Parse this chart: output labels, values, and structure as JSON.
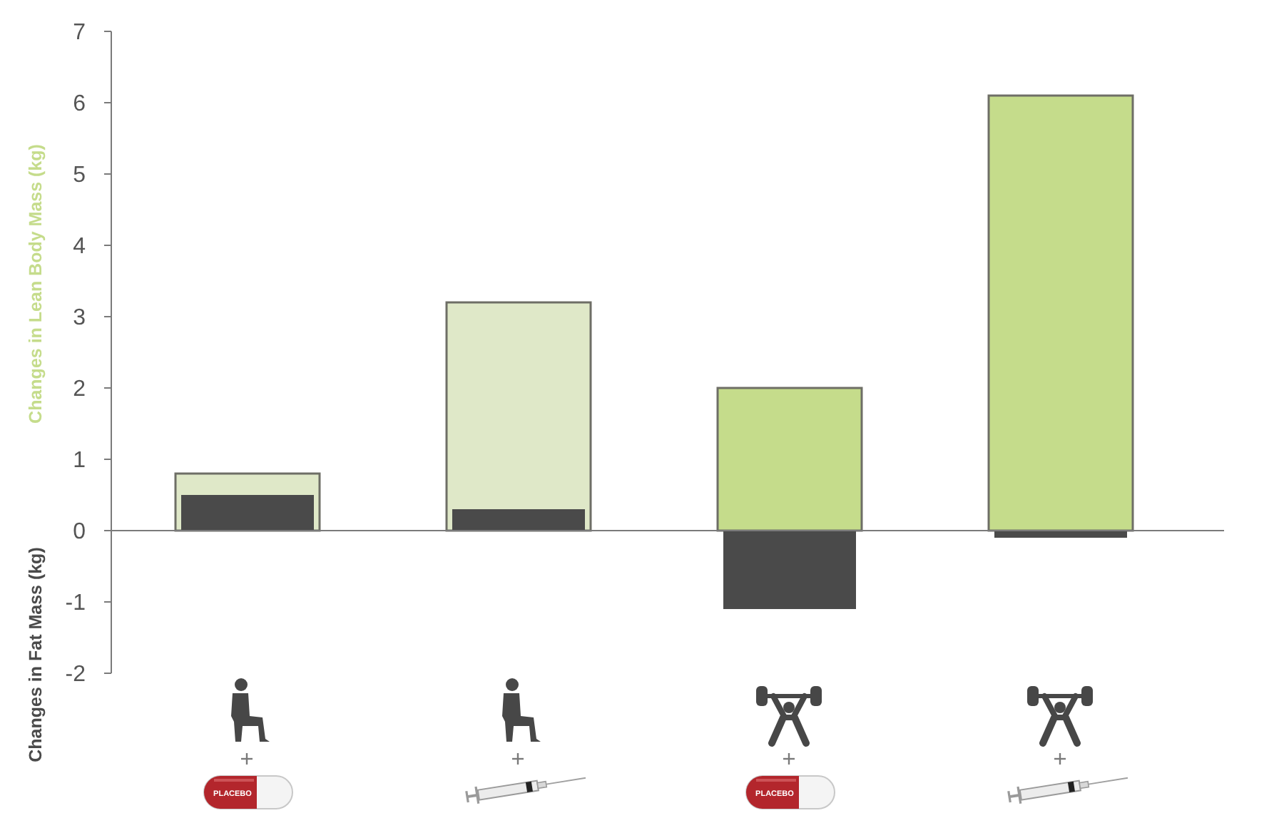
{
  "chart_data": {
    "type": "bar",
    "categories": [
      null,
      null,
      null,
      null
    ],
    "series": [
      {
        "name": "Changes in Lean Body Mass (kg)",
        "color": "#c5dc8b",
        "colors": [
          "#dfe8c8",
          "#dfe8c8",
          "#c5dc8b",
          "#c5dc8b"
        ],
        "values": [
          0.8,
          3.2,
          2.0,
          6.1
        ]
      },
      {
        "name": "Changes in Fat Mass (kg)",
        "color": "#4a4a4a",
        "values": [
          0.5,
          0.3,
          -1.1,
          -0.1
        ]
      }
    ],
    "ylim": [
      -2,
      7
    ],
    "yticks": [
      -2,
      -1,
      0,
      1,
      2,
      3,
      4,
      5,
      6,
      7
    ],
    "annotations": [
      "PLACEBO",
      "PLACEBO"
    ]
  }
}
